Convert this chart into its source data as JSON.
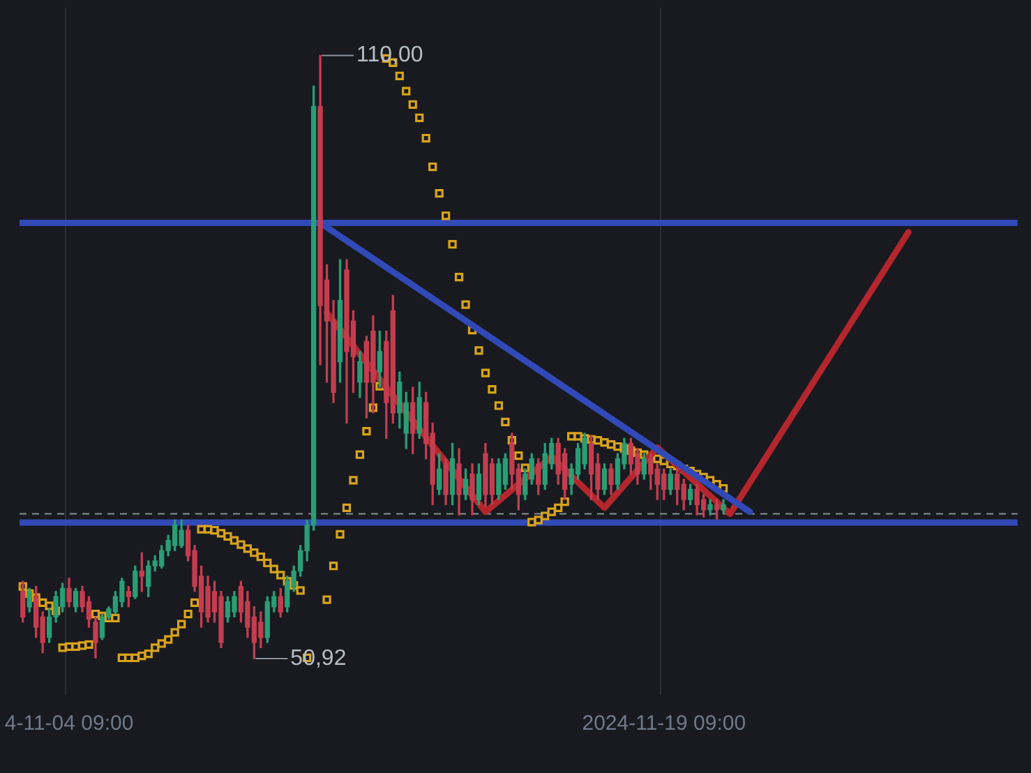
{
  "chart_data": {
    "type": "candlestick",
    "categories": [
      null,
      null,
      null,
      null,
      null,
      null,
      null,
      "4-11-04 09:00",
      null,
      null,
      null,
      null,
      null,
      null,
      null,
      null,
      null,
      null,
      null,
      null,
      null,
      null,
      null,
      null,
      null,
      null,
      null,
      null,
      null,
      null,
      null,
      null,
      null,
      null,
      null,
      null,
      null,
      null,
      null,
      null,
      null,
      null,
      null,
      null,
      null,
      null,
      null,
      null,
      null,
      null,
      null,
      null,
      null,
      null,
      null,
      null,
      null,
      null,
      null,
      null,
      null,
      null,
      null,
      null,
      null,
      null,
      null,
      null,
      null,
      null,
      null,
      null,
      null,
      null,
      null,
      null,
      null,
      null,
      null,
      null,
      null,
      null,
      null,
      null,
      null,
      null,
      null,
      null,
      null,
      null,
      null,
      null,
      null,
      null,
      null,
      null,
      null,
      "2024-11-19 09:00",
      null,
      null,
      null,
      null,
      null,
      null,
      null,
      null,
      null,
      null,
      null,
      null,
      null,
      null,
      null,
      null,
      null,
      null,
      null,
      null,
      null,
      null,
      null,
      null,
      null,
      null,
      null,
      null,
      null,
      null,
      null,
      null,
      null,
      null,
      null,
      null,
      null,
      null,
      null,
      null,
      null,
      null,
      null,
      null,
      null,
      null,
      null,
      null,
      null,
      null,
      null,
      null,
      null
    ],
    "ohlc": [
      [
        57.5,
        58.5,
        54.5,
        55
      ],
      [
        56,
        57.8,
        55.5,
        57.5
      ],
      [
        57,
        58,
        53,
        54
      ],
      [
        55,
        55.5,
        51.5,
        52.5
      ],
      [
        53,
        55.8,
        52.5,
        55
      ],
      [
        55,
        57.5,
        54.5,
        57
      ],
      [
        56,
        58.3,
        55.5,
        57.8
      ],
      [
        57.8,
        58.8,
        56,
        56.5
      ],
      [
        56,
        57.8,
        55.5,
        57.5
      ],
      [
        57.5,
        58,
        55.5,
        56
      ],
      [
        56.5,
        57,
        54,
        54.8
      ],
      [
        54.5,
        55,
        51,
        52.5
      ],
      [
        53,
        55.3,
        52.8,
        55
      ],
      [
        55,
        56,
        54.8,
        55.8
      ],
      [
        55.5,
        57.5,
        55.3,
        57
      ],
      [
        56.5,
        58.8,
        56,
        58.5
      ],
      [
        57.5,
        58,
        56,
        57
      ],
      [
        57,
        60,
        56.8,
        59.5
      ],
      [
        59.5,
        61.3,
        57.5,
        59
      ],
      [
        58,
        60.5,
        57,
        60
      ],
      [
        60,
        61,
        59.5,
        60.5
      ],
      [
        60,
        62,
        59.8,
        61.5
      ],
      [
        61.5,
        63,
        61,
        62.5
      ],
      [
        62,
        64.5,
        61.5,
        64
      ],
      [
        62,
        64.5,
        61.8,
        63.5
      ],
      [
        63.5,
        64,
        60.5,
        61
      ],
      [
        61.5,
        62,
        57.5,
        58
      ],
      [
        59,
        60,
        54,
        55.5
      ],
      [
        58,
        59,
        54.5,
        55
      ],
      [
        57.5,
        58.5,
        54.5,
        55.5
      ],
      [
        57,
        57.5,
        52,
        52.5
      ],
      [
        55,
        57,
        54.5,
        56.5
      ],
      [
        55.5,
        57.5,
        55,
        57
      ],
      [
        58,
        58.5,
        54.5,
        55.5
      ],
      [
        56.5,
        57.5,
        53,
        54
      ],
      [
        55,
        56,
        50.92,
        52.5
      ],
      [
        54.5,
        55.5,
        52,
        53
      ],
      [
        53,
        57,
        52.5,
        56.5
      ],
      [
        56,
        57.5,
        55.5,
        57
      ],
      [
        57,
        57.8,
        55,
        55.5
      ],
      [
        56,
        59,
        55.5,
        58.5
      ],
      [
        58,
        60,
        57.5,
        59.5
      ],
      [
        59.5,
        62,
        59,
        61.5
      ],
      [
        61.5,
        64.5,
        60.5,
        64
      ],
      [
        64,
        107,
        63.5,
        105
      ],
      [
        105,
        110,
        79.7,
        85.5
      ],
      [
        88,
        89.5,
        78,
        84
      ],
      [
        84,
        86,
        76,
        77
      ],
      [
        80,
        90,
        78,
        86
      ],
      [
        89,
        90,
        74,
        81
      ],
      [
        84,
        85,
        77,
        80.5
      ],
      [
        78,
        81,
        76.5,
        80
      ],
      [
        82,
        82.5,
        74.5,
        78
      ],
      [
        83,
        84.5,
        75,
        78
      ],
      [
        79,
        83,
        77.5,
        81
      ],
      [
        82,
        83,
        72.5,
        76
      ],
      [
        85,
        86.5,
        74,
        75
      ],
      [
        75,
        79,
        73.5,
        78
      ],
      [
        73,
        77,
        71.5,
        76
      ],
      [
        76,
        77.5,
        71,
        73
      ],
      [
        73,
        78,
        72.5,
        76.5
      ],
      [
        76,
        77,
        70.5,
        72
      ],
      [
        73,
        74,
        66,
        68
      ],
      [
        67.5,
        71,
        67,
        69.5
      ],
      [
        70,
        70.5,
        66,
        67
      ],
      [
        67,
        72,
        66,
        70.5
      ],
      [
        70,
        71.5,
        65,
        67
      ],
      [
        67,
        69.5,
        66.5,
        68.5
      ],
      [
        69,
        70,
        65,
        66.5
      ],
      [
        66.5,
        70,
        66,
        69
      ],
      [
        71,
        72,
        65.8,
        67
      ],
      [
        70,
        70.5,
        66,
        67
      ],
      [
        67,
        70.5,
        66.5,
        70
      ],
      [
        68,
        71,
        67.5,
        70.5
      ],
      [
        72,
        73,
        67.5,
        69
      ],
      [
        69.5,
        70,
        65.5,
        67
      ],
      [
        67,
        69.5,
        66.5,
        69
      ],
      [
        68.5,
        71,
        68,
        70.5
      ],
      [
        70,
        70.5,
        67,
        68
      ],
      [
        68,
        72,
        67.5,
        71
      ],
      [
        70,
        72.5,
        69.5,
        72
      ],
      [
        72,
        72.5,
        68,
        69
      ],
      [
        71,
        71.5,
        66.5,
        67.5
      ],
      [
        68,
        70,
        67,
        69.5
      ],
      [
        69,
        72,
        68.5,
        71.5
      ],
      [
        70,
        73,
        69.5,
        72.5
      ],
      [
        72,
        72.8,
        66.5,
        69
      ],
      [
        70,
        71,
        66.5,
        67.5
      ],
      [
        67.5,
        70,
        67,
        69.5
      ],
      [
        69.5,
        70,
        67,
        68
      ],
      [
        68,
        71,
        67.5,
        70.5
      ],
      [
        70,
        72.5,
        69.5,
        72
      ],
      [
        72,
        72.5,
        69,
        70
      ],
      [
        71,
        71.5,
        68,
        69
      ],
      [
        69,
        71,
        68.5,
        70.5
      ],
      [
        70.5,
        71,
        67.5,
        69
      ],
      [
        69.5,
        70,
        66.5,
        68
      ],
      [
        69,
        69.5,
        66.5,
        67.5
      ],
      [
        67.5,
        69.5,
        67,
        69
      ],
      [
        69,
        69.5,
        66,
        67.5
      ],
      [
        68,
        68.5,
        65.5,
        66.5
      ],
      [
        66.5,
        68,
        66,
        67.5
      ],
      [
        67.5,
        68,
        65,
        66
      ],
      [
        66.5,
        67,
        64.8,
        65.5
      ],
      [
        65.5,
        66.5,
        65,
        66
      ],
      [
        66,
        66.5,
        64.6,
        65.5
      ],
      [
        65.5,
        66.5,
        65.2,
        66
      ],
      null,
      null,
      null,
      null,
      null,
      null,
      null,
      null,
      null,
      null,
      null,
      null,
      null,
      null,
      null,
      null,
      null,
      null,
      null,
      null,
      null,
      null,
      null,
      null,
      null,
      null,
      null,
      null,
      null,
      null,
      null,
      null,
      null,
      null,
      null,
      null,
      null,
      null,
      null,
      null,
      null,
      null,
      null,
      null
    ],
    "series": [
      {
        "type": "scatter",
        "color": "#d9a31c",
        "marker": "square",
        "values": [
          58.0,
          57.3,
          56.9,
          56.4,
          56.1,
          55.6,
          52.0,
          52.1,
          52.1,
          52.2,
          52.3,
          55.3,
          55.1,
          54.9,
          54.9,
          51.0,
          51.0,
          51.0,
          51.2,
          51.4,
          52.0,
          52.4,
          52.8,
          53.5,
          54.3,
          55.3,
          56.4,
          63.6,
          63.6,
          63.5,
          63.2,
          62.9,
          62.5,
          62.1,
          61.7,
          61.3,
          60.9,
          60.3,
          59.7,
          59.1,
          58.5,
          58.1,
          57.6,
          51.0,
          null,
          null,
          56.7,
          60.0,
          63.1,
          65.7,
          68.4,
          70.9,
          73.2,
          75.5,
          77.6,
          109.7,
          109.3,
          108.0,
          106.5,
          105.2,
          103.9,
          101.9,
          99.1,
          96.5,
          94.3,
          91.5,
          88.3,
          85.6,
          83.1,
          81.1,
          78.9,
          77.3,
          75.7,
          74.1,
          72.3,
          70.8,
          69.6,
          64.3,
          64.5,
          64.9,
          65.3,
          65.7,
          66.3,
          72.7,
          72.7,
          72.5,
          72.4,
          72.3,
          72.1,
          71.9,
          71.7,
          71.5,
          71.3,
          71.1,
          70.9,
          70.7,
          70.5,
          70.3,
          70.0,
          69.8,
          69.5,
          69.3,
          69.0,
          68.7,
          68.4,
          68.0,
          67.6,
          null,
          null,
          null,
          null,
          null,
          null,
          null,
          null,
          null,
          null,
          null,
          null,
          null,
          null,
          null,
          null,
          null,
          null,
          null,
          null,
          null,
          null,
          null,
          null,
          null,
          null,
          null,
          null,
          null,
          null,
          null,
          null,
          null,
          null,
          null,
          null,
          null,
          null,
          null,
          null,
          null,
          null,
          null,
          null
        ]
      },
      {
        "type": "line",
        "color": "#3249b8",
        "line_style": "solid",
        "values": [
          null,
          null,
          null,
          null,
          null,
          null,
          null,
          null,
          null,
          null,
          null,
          null,
          null,
          null,
          null,
          null,
          null,
          null,
          null,
          null,
          null,
          null,
          null,
          null,
          null,
          null,
          null,
          null,
          null,
          null,
          null,
          null,
          null,
          null,
          null,
          null,
          null,
          null,
          null,
          null,
          null,
          null,
          null,
          null,
          null,
          93.6,
          null,
          null,
          null,
          null,
          null,
          null,
          null,
          null,
          null,
          null,
          null,
          null,
          null,
          null,
          null,
          null,
          null,
          null,
          null,
          null,
          null,
          null,
          null,
          null,
          null,
          null,
          null,
          null,
          null,
          null,
          null,
          null,
          null,
          null,
          null,
          null,
          null,
          null,
          null,
          null,
          null,
          null,
          null,
          null,
          null,
          null,
          null,
          null,
          null,
          null,
          null,
          null,
          null,
          null,
          null,
          null,
          null,
          null,
          null,
          null,
          null,
          null,
          null,
          null,
          65.3,
          null,
          null,
          null,
          null,
          null,
          null,
          null,
          null,
          null,
          null,
          null,
          null,
          null,
          null,
          null,
          null,
          null,
          null,
          null,
          null,
          null,
          null,
          null,
          null,
          null,
          null,
          null,
          null,
          null,
          null,
          null,
          null,
          null,
          null,
          null,
          null,
          null,
          null,
          null,
          null
        ]
      },
      {
        "type": "line",
        "color": "#b3262c",
        "line_style": "solid",
        "values": [
          null,
          null,
          null,
          null,
          null,
          null,
          null,
          null,
          null,
          null,
          null,
          null,
          null,
          null,
          null,
          null,
          null,
          null,
          null,
          null,
          null,
          null,
          null,
          null,
          null,
          null,
          null,
          null,
          null,
          null,
          null,
          null,
          null,
          null,
          null,
          null,
          null,
          null,
          null,
          null,
          null,
          null,
          null,
          null,
          null,
          null,
          84.8,
          null,
          null,
          null,
          null,
          null,
          null,
          null,
          null,
          null,
          null,
          null,
          null,
          null,
          null,
          null,
          null,
          null,
          null,
          null,
          null,
          null,
          null,
          null,
          65.3,
          null,
          null,
          null,
          null,
          null,
          null,
          null,
          null,
          null,
          70.7,
          null,
          null,
          null,
          null,
          null,
          null,
          null,
          65.7,
          null,
          null,
          null,
          null,
          null,
          null,
          null,
          71.6,
          null,
          null,
          null,
          null,
          null,
          null,
          null,
          null,
          null,
          null,
          65.1,
          null,
          null,
          null,
          null,
          null,
          null,
          null,
          null,
          null,
          null,
          null,
          null,
          null,
          null,
          null,
          null,
          null,
          null,
          null,
          null,
          null,
          null,
          null,
          null,
          null,
          null,
          92.7,
          null,
          null,
          null,
          null,
          null,
          null,
          null,
          null,
          null,
          null,
          null,
          null,
          null,
          null,
          null,
          null
        ]
      }
    ],
    "ref_lines": [
      {
        "axis": "y",
        "value": 93.6,
        "color": "#3249b8",
        "line_style": "solid"
      },
      {
        "axis": "y",
        "value": 64.25,
        "color": "#3249b8",
        "line_style": "solid"
      },
      {
        "axis": "y",
        "value": 65.1,
        "color": "#8a8f98",
        "line_style": "dashed"
      }
    ],
    "annotations": [
      {
        "text": "110,00",
        "y": 110
      },
      "50,92"
    ],
    "grid": "x",
    "legend": false
  }
}
